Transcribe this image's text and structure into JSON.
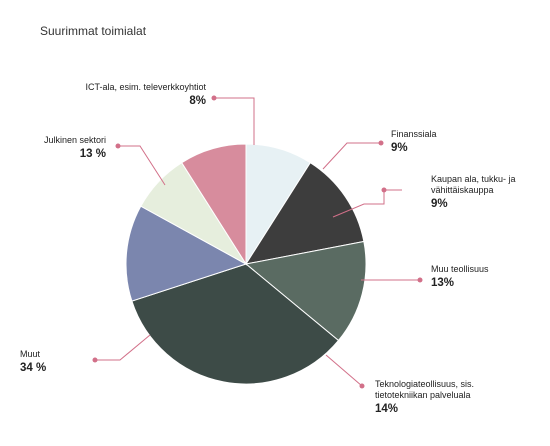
{
  "chart_data": {
    "type": "pie",
    "title": "Suurimmat toimialat",
    "start_angle_deg": 0,
    "leader_color": "#d27089",
    "slices": [
      {
        "label": "Kaupan ala, tukku- ja vähittäiskauppa",
        "value": 9,
        "display": "9%",
        "color": "#e7f1f4"
      },
      {
        "label": "Muu teollisuus",
        "value": 13,
        "display": "13%",
        "color": "#3d3d3d"
      },
      {
        "label": "Teknologiateollisuus, sis. tietotekniikan palveluala",
        "value": 14,
        "display": "14%",
        "color": "#5a6b62"
      },
      {
        "label": "Muut",
        "value": 34,
        "display": "34 %",
        "color": "#3d4b47"
      },
      {
        "label": "Julkinen sektori",
        "value": 13,
        "display": "13 %",
        "color": "#7b86ae"
      },
      {
        "label": "ICT-ala, esim. televerkkoyhtiot",
        "value": 8,
        "display": "8%",
        "color": "#e6eedd"
      },
      {
        "label": "Finanssiala",
        "value": 9,
        "display": "9%",
        "color": "#d78c9d"
      }
    ]
  }
}
